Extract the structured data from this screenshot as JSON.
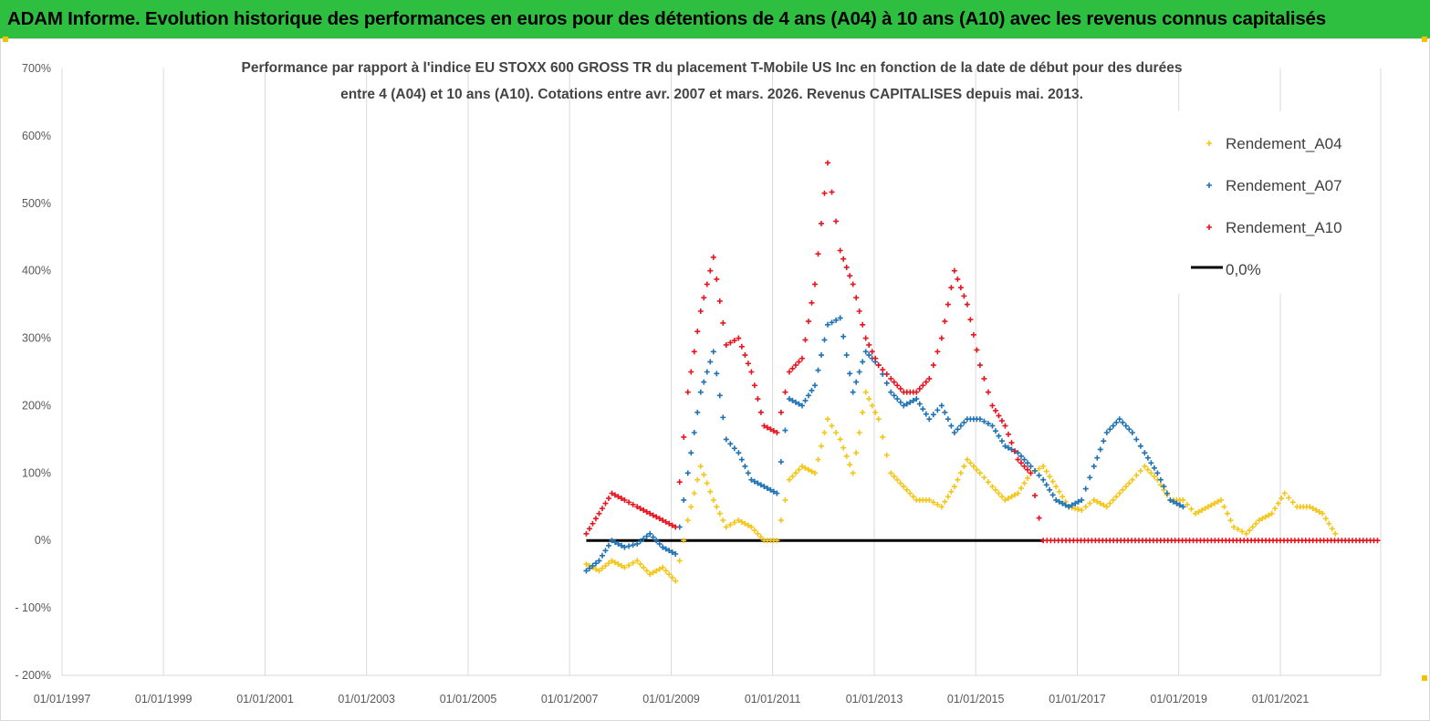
{
  "header": {
    "title": "ADAM Informe. Evolution historique des performances en euros pour des détentions de 4 ans (A04) à 10 ans (A10) avec les revenus connus capitalisés"
  },
  "chart_data": {
    "type": "scatter",
    "title_lines": [
      "Performance par rapport à l'indice EU STOXX 600 GROSS TR  du placement T-Mobile US Inc en fonction de la date de début pour des durées",
      "entre 4 (A04) et 10 ans (A10). Cotations entre avr. 2007 et mars. 2026. Revenus CAPITALISES depuis mai. 2013."
    ],
    "y_ticks": [
      "700%",
      "600%",
      "500%",
      "400%",
      "300%",
      "200%",
      "100%",
      "0%",
      "- 100%",
      "- 200%"
    ],
    "x_ticks": [
      "01/01/1997",
      "01/01/1999",
      "01/01/2001",
      "01/01/2003",
      "01/01/2005",
      "01/01/2007",
      "01/01/2009",
      "01/01/2011",
      "01/01/2013",
      "01/01/2015",
      "01/01/2017",
      "01/01/2019",
      "01/01/2021"
    ],
    "ylim": [
      -200,
      700
    ],
    "xlim": [
      "1997-01-01",
      "2023-01-01"
    ],
    "grid": "vertical",
    "legend_position": "top-right",
    "series": [
      {
        "name": "Rendement_A04",
        "color": "#f5c518",
        "marker": "plus",
        "points": [
          [
            "2007-05-01",
            -35
          ],
          [
            "2007-08-01",
            -45
          ],
          [
            "2007-11-01",
            -30
          ],
          [
            "2008-02-01",
            -40
          ],
          [
            "2008-05-01",
            -30
          ],
          [
            "2008-08-01",
            -50
          ],
          [
            "2008-11-01",
            -40
          ],
          [
            "2009-02-01",
            -60
          ],
          [
            "2009-05-01",
            30
          ],
          [
            "2009-08-01",
            110
          ],
          [
            "2009-11-01",
            60
          ],
          [
            "2010-02-01",
            20
          ],
          [
            "2010-05-01",
            30
          ],
          [
            "2010-08-01",
            20
          ],
          [
            "2010-11-01",
            0
          ],
          [
            "2011-02-01",
            0
          ],
          [
            "2011-05-01",
            90
          ],
          [
            "2011-08-01",
            110
          ],
          [
            "2011-11-01",
            100
          ],
          [
            "2012-02-01",
            180
          ],
          [
            "2012-05-01",
            150
          ],
          [
            "2012-08-01",
            100
          ],
          [
            "2012-11-01",
            220
          ],
          [
            "2013-02-01",
            180
          ],
          [
            "2013-05-01",
            100
          ],
          [
            "2013-08-01",
            80
          ],
          [
            "2013-11-01",
            60
          ],
          [
            "2014-02-01",
            60
          ],
          [
            "2014-05-01",
            50
          ],
          [
            "2014-08-01",
            80
          ],
          [
            "2014-11-01",
            120
          ],
          [
            "2015-02-01",
            100
          ],
          [
            "2015-05-01",
            80
          ],
          [
            "2015-08-01",
            60
          ],
          [
            "2015-11-01",
            70
          ],
          [
            "2016-02-01",
            100
          ],
          [
            "2016-05-01",
            110
          ],
          [
            "2016-08-01",
            80
          ],
          [
            "2016-11-01",
            50
          ],
          [
            "2017-02-01",
            45
          ],
          [
            "2017-05-01",
            60
          ],
          [
            "2017-08-01",
            50
          ],
          [
            "2017-11-01",
            70
          ],
          [
            "2018-02-01",
            90
          ],
          [
            "2018-05-01",
            110
          ],
          [
            "2018-08-01",
            90
          ],
          [
            "2018-11-01",
            60
          ],
          [
            "2019-02-01",
            60
          ],
          [
            "2019-05-01",
            40
          ],
          [
            "2019-08-01",
            50
          ],
          [
            "2019-11-01",
            60
          ],
          [
            "2020-02-01",
            20
          ],
          [
            "2020-05-01",
            10
          ],
          [
            "2020-08-01",
            30
          ],
          [
            "2020-11-01",
            40
          ],
          [
            "2021-02-01",
            70
          ],
          [
            "2021-05-01",
            50
          ],
          [
            "2021-08-01",
            50
          ],
          [
            "2021-11-01",
            40
          ],
          [
            "2022-02-01",
            10
          ]
        ]
      },
      {
        "name": "Rendement_A07",
        "color": "#1f73b4",
        "marker": "plus",
        "points": [
          [
            "2007-05-01",
            -45
          ],
          [
            "2007-08-01",
            -30
          ],
          [
            "2007-11-01",
            0
          ],
          [
            "2008-02-01",
            -10
          ],
          [
            "2008-05-01",
            -5
          ],
          [
            "2008-08-01",
            10
          ],
          [
            "2008-11-01",
            -10
          ],
          [
            "2009-02-01",
            -20
          ],
          [
            "2009-05-01",
            100
          ],
          [
            "2009-08-01",
            220
          ],
          [
            "2009-11-01",
            280
          ],
          [
            "2010-02-01",
            150
          ],
          [
            "2010-05-01",
            130
          ],
          [
            "2010-08-01",
            90
          ],
          [
            "2010-11-01",
            80
          ],
          [
            "2011-02-01",
            70
          ],
          [
            "2011-05-01",
            210
          ],
          [
            "2011-08-01",
            200
          ],
          [
            "2011-11-01",
            230
          ],
          [
            "2012-02-01",
            320
          ],
          [
            "2012-05-01",
            330
          ],
          [
            "2012-08-01",
            220
          ],
          [
            "2012-11-01",
            280
          ],
          [
            "2013-02-01",
            260
          ],
          [
            "2013-05-01",
            220
          ],
          [
            "2013-08-01",
            200
          ],
          [
            "2013-11-01",
            210
          ],
          [
            "2014-02-01",
            180
          ],
          [
            "2014-05-01",
            200
          ],
          [
            "2014-08-01",
            160
          ],
          [
            "2014-11-01",
            180
          ],
          [
            "2015-02-01",
            180
          ],
          [
            "2015-05-01",
            170
          ],
          [
            "2015-08-01",
            140
          ],
          [
            "2015-11-01",
            130
          ],
          [
            "2016-02-01",
            110
          ],
          [
            "2016-05-01",
            90
          ],
          [
            "2016-08-01",
            60
          ],
          [
            "2016-11-01",
            50
          ],
          [
            "2017-02-01",
            60
          ],
          [
            "2017-05-01",
            110
          ],
          [
            "2017-08-01",
            160
          ],
          [
            "2017-11-01",
            180
          ],
          [
            "2018-02-01",
            160
          ],
          [
            "2018-05-01",
            130
          ],
          [
            "2018-08-01",
            100
          ],
          [
            "2018-11-01",
            60
          ],
          [
            "2019-02-01",
            50
          ]
        ]
      },
      {
        "name": "Rendement_A10",
        "color": "#e8141e",
        "marker": "plus",
        "points": [
          [
            "2007-05-01",
            10
          ],
          [
            "2007-08-01",
            40
          ],
          [
            "2007-11-01",
            70
          ],
          [
            "2008-02-01",
            60
          ],
          [
            "2008-05-01",
            50
          ],
          [
            "2008-08-01",
            40
          ],
          [
            "2008-11-01",
            30
          ],
          [
            "2009-02-01",
            20
          ],
          [
            "2009-05-01",
            220
          ],
          [
            "2009-08-01",
            340
          ],
          [
            "2009-11-01",
            420
          ],
          [
            "2010-02-01",
            290
          ],
          [
            "2010-05-01",
            300
          ],
          [
            "2010-08-01",
            250
          ],
          [
            "2010-11-01",
            170
          ],
          [
            "2011-02-01",
            160
          ],
          [
            "2011-05-01",
            250
          ],
          [
            "2011-08-01",
            270
          ],
          [
            "2011-11-01",
            380
          ],
          [
            "2012-02-01",
            560
          ],
          [
            "2012-05-01",
            430
          ],
          [
            "2012-08-01",
            380
          ],
          [
            "2012-11-01",
            300
          ],
          [
            "2013-02-01",
            260
          ],
          [
            "2013-05-01",
            240
          ],
          [
            "2013-08-01",
            220
          ],
          [
            "2013-11-01",
            220
          ],
          [
            "2014-02-01",
            240
          ],
          [
            "2014-05-01",
            300
          ],
          [
            "2014-08-01",
            400
          ],
          [
            "2014-11-01",
            350
          ],
          [
            "2015-02-01",
            260
          ],
          [
            "2015-05-01",
            200
          ],
          [
            "2015-08-01",
            170
          ],
          [
            "2015-11-01",
            120
          ],
          [
            "2016-02-01",
            100
          ],
          [
            "2016-05-01",
            0
          ],
          [
            "2017-01-01",
            0
          ],
          [
            "2018-01-01",
            0
          ],
          [
            "2019-01-01",
            0
          ],
          [
            "2020-01-01",
            0
          ],
          [
            "2021-01-01",
            0
          ],
          [
            "2022-01-01",
            0
          ],
          [
            "2022-12-01",
            0
          ]
        ]
      }
    ],
    "reference_line": {
      "name": "0,0%",
      "color": "#000000",
      "x": [
        "2007-05-01",
        "2016-05-01"
      ],
      "y": 0
    }
  }
}
